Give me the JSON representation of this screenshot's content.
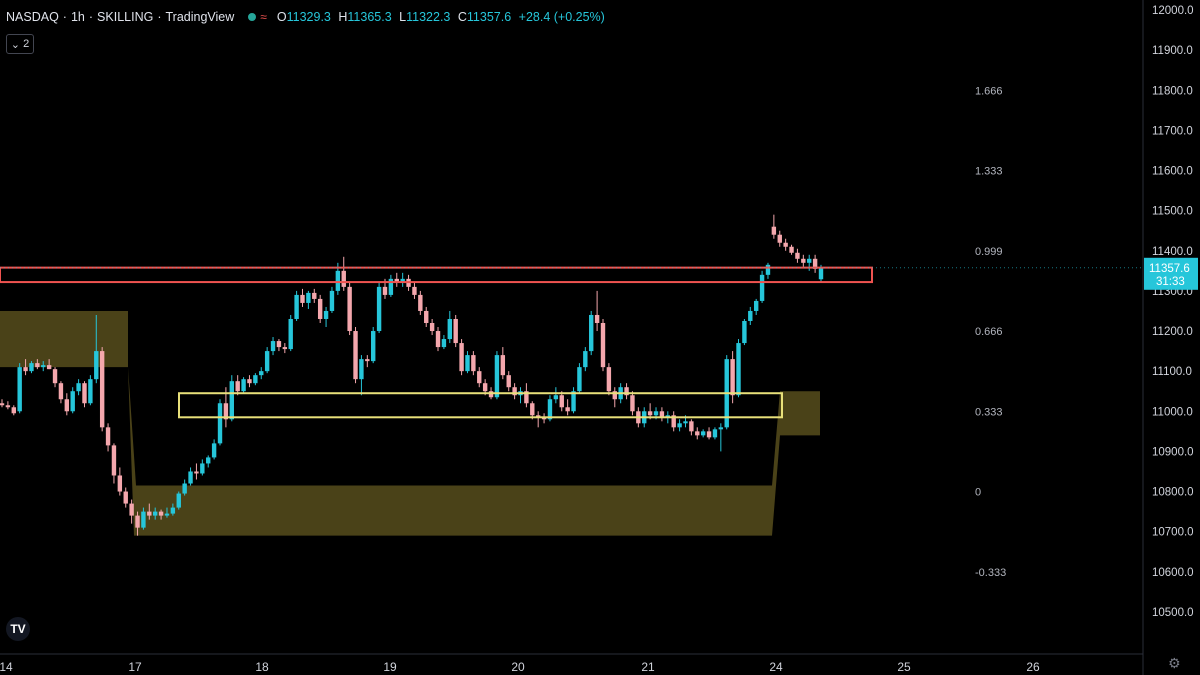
{
  "header": {
    "symbol": "NASDAQ",
    "interval": "1h",
    "author": "SKILLING",
    "source": "TradingView",
    "ohlc": {
      "o": "11329.3",
      "h": "11365.3",
      "l": "11322.3",
      "c": "11357.6",
      "change": "+28.4 (+0.25%)"
    },
    "indicator_count": "2"
  },
  "colors": {
    "up": "#26c6da",
    "down": "#f4a7ad",
    "zone_fill": "#4a4218",
    "support_box": "#e8e07a",
    "resistance_box": "#ef5350",
    "price_label_bg": "#26c6da"
  },
  "icons": {
    "collapse": "chevron-down-icon",
    "logo": "tradingview-logo-icon",
    "settings": "gear-icon",
    "status": "market-status-icon"
  },
  "chart_data": {
    "type": "candlestick",
    "y_ticks": [
      "10500.0",
      "10600.0",
      "10700.0",
      "10800.0",
      "10900.0",
      "11000.0",
      "11100.0",
      "11200.0",
      "11300.0",
      "11400.0",
      "11500.0",
      "11600.0",
      "11700.0",
      "11800.0",
      "11900.0",
      "12000.0"
    ],
    "ylim": [
      10430,
      12010
    ],
    "x_ticks": [
      "14",
      "17",
      "18",
      "19",
      "20",
      "21",
      "24",
      "25",
      "26"
    ],
    "last_price": "11357.6",
    "countdown": "31:33",
    "fib_levels": [
      {
        "label": "1.666",
        "price": 11800
      },
      {
        "label": "1.333",
        "price": 11600
      },
      {
        "label": "0.999",
        "price": 11400
      },
      {
        "label": "0.666",
        "price": 11200
      },
      {
        "label": "0.333",
        "price": 11000
      },
      {
        "label": "0",
        "price": 10800
      },
      {
        "label": "-0.333",
        "price": 10600
      }
    ],
    "candles": [
      [
        11020,
        11030,
        11010,
        11015
      ],
      [
        11015,
        11025,
        11005,
        11010
      ],
      [
        11010,
        11015,
        10990,
        10995
      ],
      [
        11000,
        11120,
        10995,
        11110
      ],
      [
        11110,
        11130,
        11090,
        11100
      ],
      [
        11100,
        11125,
        11095,
        11120
      ],
      [
        11120,
        11130,
        11105,
        11110
      ],
      [
        11110,
        11125,
        11100,
        11115
      ],
      [
        11115,
        11130,
        11105,
        11105
      ],
      [
        11105,
        11110,
        11060,
        11070
      ],
      [
        11070,
        11075,
        11020,
        11030
      ],
      [
        11030,
        11045,
        10990,
        11000
      ],
      [
        11000,
        11060,
        10995,
        11050
      ],
      [
        11050,
        11080,
        11040,
        11070
      ],
      [
        11070,
        11075,
        11010,
        11020
      ],
      [
        11020,
        11090,
        11015,
        11080
      ],
      [
        11080,
        11240,
        11070,
        11150
      ],
      [
        11150,
        11160,
        10950,
        10960
      ],
      [
        10960,
        10970,
        10900,
        10915
      ],
      [
        10915,
        10920,
        10820,
        10840
      ],
      [
        10840,
        10860,
        10790,
        10800
      ],
      [
        10800,
        10810,
        10760,
        10770
      ],
      [
        10770,
        10780,
        10720,
        10740
      ],
      [
        10740,
        10750,
        10690,
        10710
      ],
      [
        10710,
        10760,
        10705,
        10750
      ],
      [
        10750,
        10770,
        10730,
        10740
      ],
      [
        10740,
        10760,
        10730,
        10750
      ],
      [
        10750,
        10755,
        10730,
        10740
      ],
      [
        10740,
        10760,
        10735,
        10745
      ],
      [
        10745,
        10770,
        10740,
        10760
      ],
      [
        10760,
        10800,
        10755,
        10795
      ],
      [
        10795,
        10830,
        10790,
        10820
      ],
      [
        10820,
        10860,
        10815,
        10850
      ],
      [
        10850,
        10870,
        10830,
        10845
      ],
      [
        10845,
        10880,
        10840,
        10870
      ],
      [
        10870,
        10890,
        10860,
        10885
      ],
      [
        10885,
        10930,
        10880,
        10920
      ],
      [
        10920,
        11030,
        10915,
        11020
      ],
      [
        11020,
        11060,
        10960,
        10980
      ],
      [
        10980,
        11090,
        10975,
        11075
      ],
      [
        11075,
        11090,
        11040,
        11050
      ],
      [
        11050,
        11085,
        11045,
        11080
      ],
      [
        11080,
        11090,
        11060,
        11070
      ],
      [
        11070,
        11095,
        11065,
        11090
      ],
      [
        11090,
        11110,
        11080,
        11100
      ],
      [
        11100,
        11160,
        11095,
        11150
      ],
      [
        11150,
        11185,
        11140,
        11175
      ],
      [
        11175,
        11180,
        11150,
        11160
      ],
      [
        11160,
        11170,
        11145,
        11155
      ],
      [
        11155,
        11240,
        11150,
        11230
      ],
      [
        11230,
        11300,
        11225,
        11290
      ],
      [
        11290,
        11305,
        11260,
        11270
      ],
      [
        11270,
        11300,
        11255,
        11295
      ],
      [
        11295,
        11305,
        11270,
        11280
      ],
      [
        11280,
        11290,
        11220,
        11230
      ],
      [
        11230,
        11260,
        11210,
        11250
      ],
      [
        11250,
        11310,
        11245,
        11300
      ],
      [
        11300,
        11370,
        11290,
        11350
      ],
      [
        11350,
        11385,
        11300,
        11310
      ],
      [
        11310,
        11320,
        11190,
        11200
      ],
      [
        11200,
        11210,
        11070,
        11080
      ],
      [
        11080,
        11140,
        11040,
        11130
      ],
      [
        11130,
        11140,
        11110,
        11125
      ],
      [
        11125,
        11210,
        11120,
        11200
      ],
      [
        11200,
        11320,
        11195,
        11310
      ],
      [
        11310,
        11330,
        11280,
        11290
      ],
      [
        11290,
        11340,
        11285,
        11330
      ],
      [
        11330,
        11345,
        11310,
        11320
      ],
      [
        11320,
        11345,
        11310,
        11330
      ],
      [
        11330,
        11340,
        11300,
        11310
      ],
      [
        11310,
        11320,
        11280,
        11290
      ],
      [
        11290,
        11300,
        11240,
        11250
      ],
      [
        11250,
        11260,
        11210,
        11220
      ],
      [
        11220,
        11230,
        11190,
        11200
      ],
      [
        11200,
        11210,
        11150,
        11160
      ],
      [
        11160,
        11190,
        11155,
        11180
      ],
      [
        11180,
        11250,
        11170,
        11230
      ],
      [
        11230,
        11240,
        11160,
        11170
      ],
      [
        11170,
        11180,
        11090,
        11100
      ],
      [
        11100,
        11150,
        11095,
        11140
      ],
      [
        11140,
        11150,
        11090,
        11100
      ],
      [
        11100,
        11110,
        11060,
        11070
      ],
      [
        11070,
        11080,
        11040,
        11050
      ],
      [
        11050,
        11060,
        11030,
        11035
      ],
      [
        11035,
        11150,
        11030,
        11140
      ],
      [
        11140,
        11160,
        11080,
        11090
      ],
      [
        11090,
        11100,
        11050,
        11060
      ],
      [
        11060,
        11070,
        11030,
        11040
      ],
      [
        11040,
        11060,
        11020,
        11050
      ],
      [
        11050,
        11070,
        11010,
        11020
      ],
      [
        11020,
        11025,
        10980,
        10990
      ],
      [
        10990,
        11000,
        10960,
        10985
      ],
      [
        10985,
        10995,
        10970,
        10980
      ],
      [
        10980,
        11040,
        10975,
        11030
      ],
      [
        11030,
        11060,
        11020,
        11040
      ],
      [
        11040,
        11050,
        11000,
        11010
      ],
      [
        11010,
        11030,
        10990,
        11000
      ],
      [
        11000,
        11060,
        10995,
        11050
      ],
      [
        11050,
        11120,
        11045,
        11110
      ],
      [
        11110,
        11160,
        11100,
        11150
      ],
      [
        11150,
        11250,
        11140,
        11240
      ],
      [
        11240,
        11300,
        11200,
        11220
      ],
      [
        11220,
        11230,
        11100,
        11110
      ],
      [
        11110,
        11120,
        11040,
        11050
      ],
      [
        11050,
        11060,
        11010,
        11030
      ],
      [
        11030,
        11070,
        11020,
        11060
      ],
      [
        11060,
        11070,
        11030,
        11040
      ],
      [
        11040,
        11050,
        10990,
        11000
      ],
      [
        11000,
        11010,
        10960,
        10970
      ],
      [
        10970,
        11010,
        10960,
        11000
      ],
      [
        11000,
        11020,
        10980,
        10990
      ],
      [
        10990,
        11010,
        10980,
        11000
      ],
      [
        11000,
        11010,
        10975,
        10985
      ],
      [
        10985,
        11000,
        10970,
        10990
      ],
      [
        10990,
        11000,
        10950,
        10960
      ],
      [
        10960,
        10980,
        10950,
        10970
      ],
      [
        10970,
        10990,
        10960,
        10975
      ],
      [
        10975,
        10980,
        10940,
        10950
      ],
      [
        10950,
        10960,
        10930,
        10940
      ],
      [
        10940,
        10955,
        10935,
        10950
      ],
      [
        10950,
        10960,
        10930,
        10935
      ],
      [
        10935,
        10960,
        10930,
        10955
      ],
      [
        10955,
        10970,
        10900,
        10960
      ],
      [
        10960,
        11140,
        10955,
        11130
      ],
      [
        11130,
        11150,
        11020,
        11040
      ],
      [
        11040,
        11180,
        11035,
        11170
      ],
      [
        11170,
        11230,
        11165,
        11225
      ],
      [
        11225,
        11260,
        11215,
        11250
      ],
      [
        11250,
        11280,
        11240,
        11275
      ],
      [
        11275,
        11350,
        11270,
        11340
      ],
      [
        11340,
        11370,
        11330,
        11365
      ],
      [
        11460,
        11490,
        11430,
        11440
      ],
      [
        11440,
        11450,
        11410,
        11420
      ],
      [
        11420,
        11430,
        11400,
        11410
      ],
      [
        11410,
        11415,
        11390,
        11395
      ],
      [
        11395,
        11405,
        11370,
        11380
      ],
      [
        11380,
        11390,
        11360,
        11370
      ],
      [
        11370,
        11390,
        11350,
        11380
      ],
      [
        11380,
        11390,
        11345,
        11355
      ],
      [
        11329,
        11365,
        11322,
        11357
      ]
    ]
  }
}
